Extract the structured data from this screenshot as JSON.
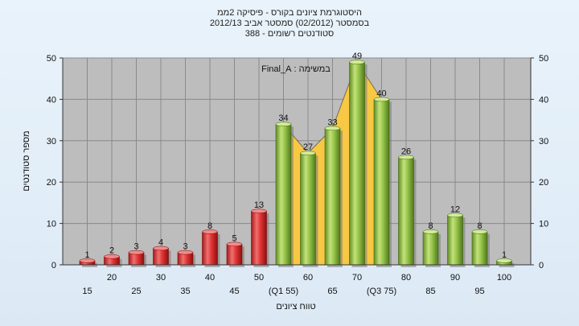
{
  "title_lines": [
    "היסטוגרמת ציונים בקורס - פיסיקה 2ממ",
    "בסמסטר  (02/2012)  סמסטר אביב 2012/13",
    "סטודנטים רשומים - 388"
  ],
  "colors": {
    "plot_bg": "#bdbdbd",
    "red_bar": "#d62a2a",
    "green_bar": "#93bf4a",
    "area": "#f8c844",
    "frame_bg": "#e2eef8"
  },
  "chart_data": {
    "type": "bar",
    "ylabel": "מספר סטודנטים",
    "xlabel": "טווח ציונים",
    "annotation": "במשימה : Final_A",
    "ylim": [
      0,
      50
    ],
    "y_ticks": [
      "0",
      "10",
      "20",
      "30",
      "40",
      "50"
    ],
    "grid": true,
    "categories": [
      "15",
      "20",
      "25",
      "30",
      "35",
      "40",
      "45",
      "50",
      "55",
      "60",
      "65",
      "70",
      "75",
      "80",
      "85",
      "90",
      "95",
      "100"
    ],
    "x_tick_labels": [
      "15",
      "20",
      "25",
      "30",
      "35",
      "40",
      "45",
      "50",
      "(Q1 55)",
      "60",
      "65",
      "70",
      "(Q3 75)",
      "80",
      "85",
      "90",
      "95",
      "100"
    ],
    "values": [
      1,
      2,
      3,
      4,
      3,
      8,
      5,
      13,
      34,
      27,
      33,
      49,
      40,
      26,
      8,
      12,
      8,
      1
    ],
    "bar_colors": [
      "red",
      "red",
      "red",
      "red",
      "red",
      "red",
      "red",
      "red",
      "green",
      "green",
      "green",
      "green",
      "green",
      "green",
      "green",
      "green",
      "green",
      "green"
    ],
    "highlight_range": [
      "55",
      "75"
    ]
  }
}
